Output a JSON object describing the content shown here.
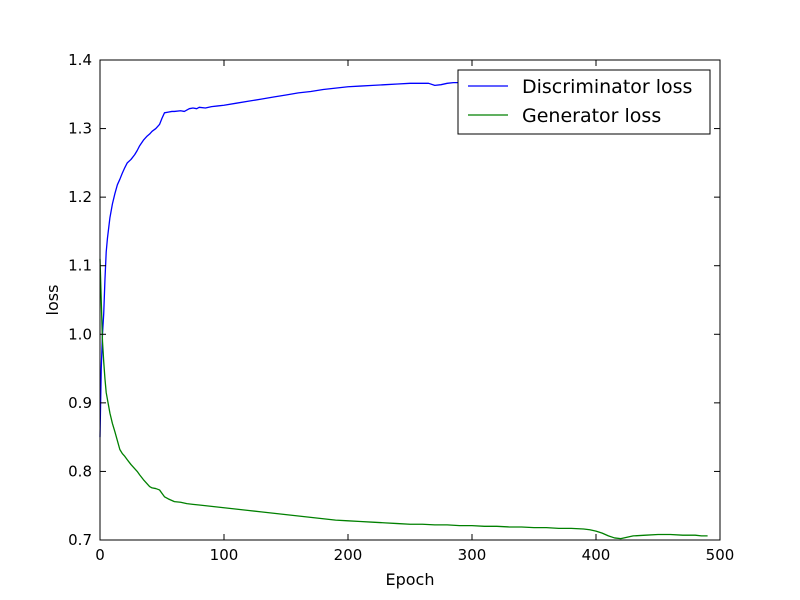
{
  "chart_data": {
    "type": "line",
    "title": "",
    "xlabel": "Epoch",
    "ylabel": "loss",
    "xlim": [
      0,
      500
    ],
    "ylim": [
      0.7,
      1.4
    ],
    "xticks": [
      0,
      100,
      200,
      300,
      400,
      500
    ],
    "xtick_labels": [
      "0",
      "100",
      "200",
      "300",
      "400",
      "500"
    ],
    "yticks": [
      0.7,
      0.8,
      0.9,
      1.0,
      1.1,
      1.2,
      1.3,
      1.4
    ],
    "ytick_labels": [
      "0.7",
      "0.8",
      "0.9",
      "1.0",
      "1.1",
      "1.2",
      "1.3",
      "1.4"
    ],
    "grid": false,
    "legend_position": "top-right",
    "series": [
      {
        "name": "Discriminator loss",
        "color": "#0000ff",
        "x": [
          0,
          1,
          2,
          3,
          4,
          5,
          6,
          7,
          8,
          10,
          12,
          14,
          16,
          18,
          20,
          22,
          25,
          28,
          30,
          32,
          35,
          38,
          40,
          42,
          45,
          48,
          50,
          52,
          55,
          58,
          60,
          65,
          68,
          70,
          72,
          75,
          78,
          80,
          85,
          90,
          95,
          100,
          110,
          120,
          130,
          140,
          150,
          160,
          170,
          180,
          190,
          200,
          210,
          220,
          230,
          240,
          250,
          260,
          265,
          270,
          275,
          280,
          285,
          290
        ],
        "y": [
          0.85,
          0.95,
          1.0,
          1.03,
          1.08,
          1.12,
          1.14,
          1.155,
          1.17,
          1.19,
          1.205,
          1.218,
          1.226,
          1.235,
          1.243,
          1.25,
          1.255,
          1.262,
          1.268,
          1.275,
          1.283,
          1.289,
          1.292,
          1.296,
          1.3,
          1.306,
          1.315,
          1.323,
          1.324,
          1.325,
          1.325,
          1.326,
          1.325,
          1.327,
          1.329,
          1.33,
          1.329,
          1.331,
          1.33,
          1.332,
          1.333,
          1.334,
          1.337,
          1.34,
          1.343,
          1.346,
          1.349,
          1.352,
          1.354,
          1.357,
          1.359,
          1.361,
          1.362,
          1.363,
          1.364,
          1.365,
          1.366,
          1.366,
          1.366,
          1.363,
          1.364,
          1.366,
          1.367,
          1.367
        ]
      },
      {
        "name": "Generator loss",
        "color": "#008000",
        "x": [
          0,
          1,
          2,
          3,
          4,
          5,
          6,
          7,
          8,
          10,
          12,
          14,
          16,
          18,
          20,
          22,
          25,
          28,
          30,
          32,
          35,
          38,
          40,
          42,
          45,
          48,
          50,
          52,
          55,
          60,
          65,
          70,
          75,
          80,
          90,
          100,
          110,
          120,
          130,
          140,
          150,
          160,
          170,
          180,
          190,
          200,
          210,
          220,
          230,
          240,
          250,
          260,
          270,
          280,
          290,
          300,
          310,
          320,
          330,
          340,
          350,
          360,
          370,
          380,
          390,
          395,
          400,
          405,
          410,
          415,
          420,
          425,
          430,
          440,
          450,
          460,
          470,
          480,
          485,
          490
        ],
        "y": [
          1.11,
          1.05,
          0.99,
          0.96,
          0.935,
          0.915,
          0.905,
          0.895,
          0.885,
          0.87,
          0.858,
          0.845,
          0.832,
          0.826,
          0.822,
          0.817,
          0.81,
          0.804,
          0.8,
          0.795,
          0.788,
          0.782,
          0.778,
          0.776,
          0.775,
          0.773,
          0.768,
          0.763,
          0.76,
          0.756,
          0.755,
          0.753,
          0.752,
          0.751,
          0.749,
          0.747,
          0.745,
          0.743,
          0.741,
          0.739,
          0.737,
          0.735,
          0.733,
          0.731,
          0.729,
          0.728,
          0.727,
          0.726,
          0.725,
          0.724,
          0.723,
          0.723,
          0.722,
          0.722,
          0.721,
          0.721,
          0.72,
          0.72,
          0.719,
          0.719,
          0.718,
          0.718,
          0.717,
          0.717,
          0.716,
          0.715,
          0.713,
          0.71,
          0.706,
          0.703,
          0.702,
          0.704,
          0.706,
          0.707,
          0.708,
          0.708,
          0.707,
          0.707,
          0.706,
          0.706
        ]
      }
    ]
  }
}
